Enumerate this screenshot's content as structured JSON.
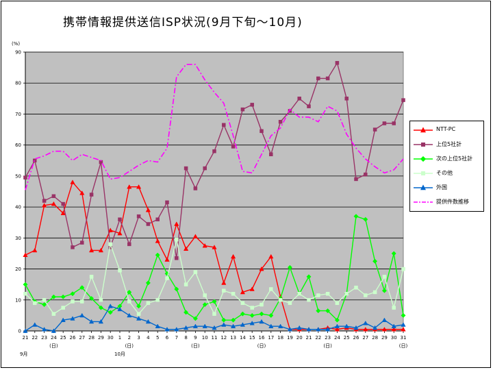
{
  "title": "携帯情報提供送信ISP状況(9月下旬～10月)",
  "chart_data": {
    "type": "line",
    "ylabel": "(%)",
    "ylim": [
      0,
      90
    ],
    "yticks": [
      0,
      10,
      20,
      30,
      40,
      50,
      60,
      70,
      80,
      90
    ],
    "grid": true,
    "legend_position": "right",
    "categories": [
      "21",
      "22",
      "23",
      "24",
      "25",
      "26",
      "27",
      "28",
      "29",
      "30",
      "1",
      "2",
      "3",
      "4",
      "5",
      "6",
      "7",
      "8",
      "9",
      "10",
      "11",
      "12",
      "13",
      "14",
      "15",
      "16",
      "17",
      "18",
      "19",
      "20",
      "21",
      "22",
      "23",
      "24",
      "25",
      "26",
      "27",
      "28",
      "29",
      "30",
      "31"
    ],
    "sub_labels": [
      "",
      "",
      "",
      "(日)",
      "",
      "",
      "",
      "",
      "",
      "",
      "",
      "(日)",
      "",
      "",
      "",
      "",
      "",
      "",
      "(日)",
      "",
      "",
      "",
      "",
      "",
      "",
      "(日)",
      "",
      "",
      "",
      "",
      "",
      "",
      "(日)",
      "",
      "",
      "",
      "",
      "",
      "",
      "",
      "(日)"
    ],
    "month_labels": [
      {
        "at": 0,
        "text": "9月"
      },
      {
        "at": 10,
        "text": "10月"
      }
    ],
    "series": [
      {
        "name": "NTT-PC",
        "color": "#ff0000",
        "marker": "triangle",
        "values": [
          24.5,
          26,
          40.5,
          41,
          38,
          48,
          44.5,
          26,
          26,
          32.5,
          31.5,
          46.5,
          46.5,
          39,
          29,
          23,
          34.5,
          26.5,
          30.5,
          27.5,
          27,
          15.5,
          24,
          12.5,
          13.5,
          20,
          24,
          11,
          0.5,
          0.5,
          0.5,
          0.5,
          1,
          0.5,
          1,
          0.5,
          0.5,
          0.5,
          0.5,
          0.5,
          0.5
        ]
      },
      {
        "name": "上位5社計",
        "color": "#993366",
        "marker": "square",
        "values": [
          49.5,
          55,
          42,
          43.5,
          41,
          27,
          28.5,
          44,
          54.5,
          27,
          36,
          28,
          37,
          34.5,
          36,
          41.5,
          23.5,
          52.5,
          46,
          52.5,
          58,
          66.5,
          59.5,
          71.5,
          73,
          64.5,
          57,
          67.5,
          71,
          75,
          72.5,
          81.5,
          81.5,
          86.5,
          75,
          49,
          50.5,
          65,
          67,
          67,
          74.5
        ]
      },
      {
        "name": "次の上位5社計",
        "color": "#00ff00",
        "marker": "diamond",
        "values": [
          15,
          9.5,
          8.5,
          11,
          11,
          12,
          14,
          10.5,
          7.5,
          6,
          8,
          12.5,
          8,
          15.5,
          24.5,
          18.5,
          13.5,
          6,
          4,
          8.5,
          9.5,
          3.5,
          3.5,
          5.5,
          5,
          5.5,
          5,
          10.5,
          20.5,
          12,
          17.5,
          6.5,
          6.5,
          3.5,
          12,
          37,
          36,
          22.5,
          13,
          25,
          5
        ]
      },
      {
        "name": "その他",
        "color": "#ccffcc",
        "marker": "square",
        "values": [
          12,
          9,
          10,
          5.5,
          7.5,
          9.5,
          9.5,
          17.5,
          10,
          28,
          19.5,
          9.5,
          5.5,
          9,
          10,
          17,
          29.5,
          15,
          19,
          11.5,
          5.5,
          13,
          12,
          9,
          7.5,
          8.5,
          13.5,
          10,
          9,
          12,
          10,
          11.5,
          12,
          9,
          12,
          14,
          11.5,
          12.5,
          17.5,
          7.5,
          20
        ]
      },
      {
        "name": "外国",
        "color": "#0066cc",
        "marker": "triangle",
        "values": [
          0,
          2,
          0.5,
          0,
          3.5,
          4,
          5,
          3,
          3,
          8,
          7,
          5,
          4,
          3,
          1.5,
          0.5,
          0.5,
          1,
          1.5,
          1.5,
          1,
          2,
          1.5,
          2,
          2.5,
          3,
          1.5,
          1.5,
          0.5,
          1,
          0.5,
          0.5,
          0.5,
          1.5,
          1.5,
          1,
          2.5,
          1,
          3.5,
          1.5,
          2
        ]
      },
      {
        "name": "提供件数推移",
        "color": "#ff00ff",
        "marker": "none",
        "dashed": true,
        "values": [
          45.5,
          55.5,
          56.5,
          58,
          58,
          55,
          57,
          56,
          55,
          49,
          49.5,
          51.5,
          53.5,
          55,
          54.5,
          59,
          82,
          86,
          86,
          81,
          77,
          73.5,
          63,
          51.5,
          51,
          57,
          63,
          65.5,
          71.5,
          69,
          69,
          67.5,
          72.5,
          71,
          63.5,
          59,
          55.5,
          53,
          51,
          52,
          55.5
        ]
      }
    ]
  }
}
